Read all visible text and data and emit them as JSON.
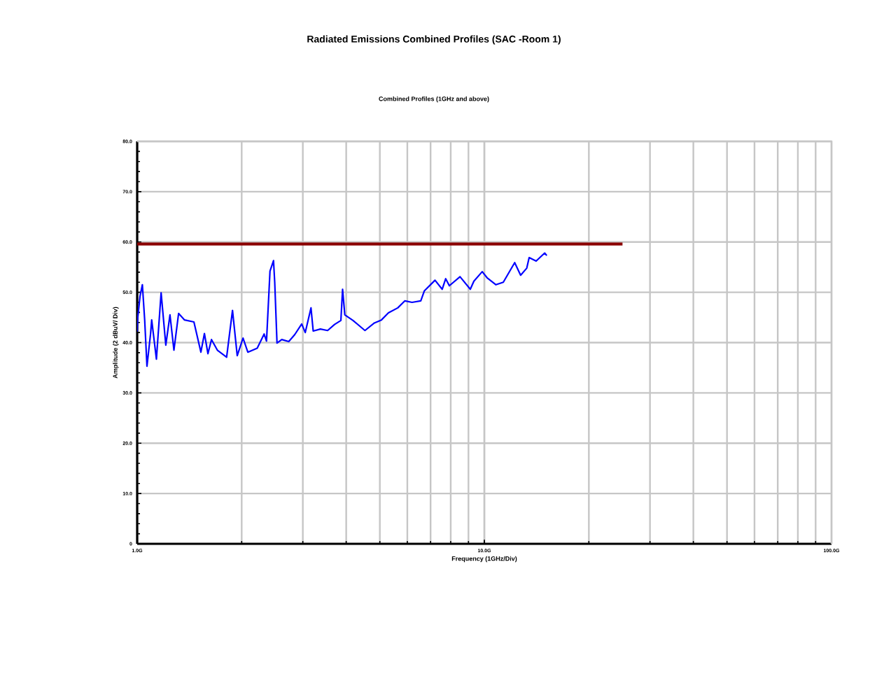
{
  "chart_data": {
    "type": "line",
    "title": "Radiated Emissions Combined Profiles (SAC -Room 1)",
    "subtitle": "Combined Profiles (1GHz and above)",
    "xlabel": "Frequency (1GHz/Div)",
    "ylabel": "Amplitude (2 dBuV/ Div)",
    "xlim": [
      1,
      100
    ],
    "ylim": [
      0,
      80
    ],
    "log": "x",
    "grid": true,
    "xticks": [
      {
        "value": 1,
        "label": "1.0G"
      },
      {
        "value": 10,
        "label": "10.0G"
      },
      {
        "value": 100,
        "label": "100.0G"
      }
    ],
    "yticks": [
      0,
      {
        "value": 10,
        "label": "10.0"
      },
      {
        "value": 20,
        "label": "20.0"
      },
      {
        "value": 30,
        "label": "30.0"
      },
      {
        "value": 40,
        "label": "40.0"
      },
      {
        "value": 50,
        "label": "50.0"
      },
      {
        "value": 60,
        "label": "60.0"
      },
      {
        "value": 70,
        "label": "70.0"
      },
      {
        "value": 80,
        "label": "80.0"
      }
    ],
    "series": [
      {
        "color": "#8b0000",
        "x": [
          1,
          25
        ],
        "values": [
          59.6,
          59.6
        ]
      },
      {
        "color": "#0000ff",
        "x": [
          1.0,
          1.004,
          1.019,
          1.035,
          1.051,
          1.067,
          1.093,
          1.101,
          1.136,
          1.172,
          1.209,
          1.243,
          1.276,
          1.316,
          1.369,
          1.457,
          1.526,
          1.562,
          1.599,
          1.637,
          1.702,
          1.81,
          1.882,
          1.942,
          2.018,
          2.083,
          2.217,
          2.321,
          2.358,
          2.413,
          2.47,
          2.49,
          2.528,
          2.609,
          2.733,
          2.844,
          2.978,
          3.049,
          3.167,
          3.214,
          3.371,
          3.536,
          3.702,
          3.862,
          3.906,
          3.964,
          4.185,
          4.53,
          4.822,
          5.053,
          5.292,
          5.632,
          5.905,
          6.19,
          6.56,
          6.72,
          7.21,
          7.56,
          7.74,
          7.93,
          8.51,
          9.11,
          9.33,
          9.86,
          10.18,
          10.8,
          11.34,
          12.23,
          12.72,
          13.25,
          13.46,
          14.1,
          14.92,
          15.13
        ],
        "values": [
          42.2,
          45.0,
          49.2,
          51.5,
          44.5,
          35.3,
          41.8,
          44.5,
          36.7,
          49.9,
          39.5,
          45.5,
          38.5,
          45.8,
          44.5,
          44.1,
          38.1,
          41.8,
          37.8,
          40.6,
          38.5,
          37.1,
          46.4,
          37.4,
          40.9,
          38.1,
          38.9,
          41.7,
          40.3,
          54.2,
          56.3,
          52.0,
          39.9,
          40.6,
          40.2,
          41.6,
          43.7,
          42.0,
          46.9,
          42.3,
          42.7,
          42.4,
          43.6,
          44.4,
          50.6,
          45.5,
          44.4,
          42.4,
          43.9,
          44.5,
          45.9,
          46.9,
          48.3,
          48.0,
          48.3,
          50.3,
          52.4,
          50.6,
          52.7,
          51.3,
          53.1,
          50.6,
          52.2,
          54.1,
          52.9,
          51.5,
          52.0,
          55.9,
          53.4,
          54.8,
          56.9,
          56.2,
          57.8,
          57.3
        ]
      }
    ]
  }
}
